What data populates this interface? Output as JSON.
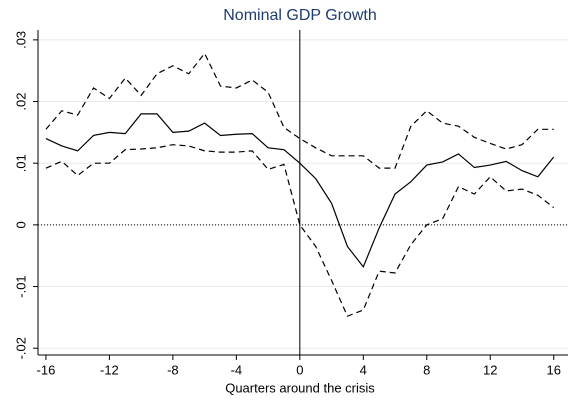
{
  "chart_data": {
    "type": "line",
    "title": "Nominal GDP Growth",
    "x_label": "Quarters around the crisis",
    "x": [
      -16,
      -15,
      -14,
      -13,
      -12,
      -11,
      -10,
      -9,
      -8,
      -7,
      -6,
      -5,
      -4,
      -3,
      -2,
      -1,
      0,
      1,
      2,
      3,
      4,
      5,
      6,
      7,
      8,
      9,
      10,
      11,
      12,
      13,
      14,
      15,
      16
    ],
    "series": [
      {
        "color": "#000000",
        "style": "solid",
        "values": [
          0.014,
          0.0128,
          0.012,
          0.0145,
          0.015,
          0.0148,
          0.018,
          0.018,
          0.015,
          0.0152,
          0.0165,
          0.0145,
          0.0147,
          0.0148,
          0.0125,
          0.0122,
          0.01,
          0.0075,
          0.0035,
          -0.0035,
          -0.0068,
          -0.0005,
          0.005,
          0.007,
          0.0097,
          0.0102,
          0.0115,
          0.0093,
          0.0097,
          0.0103,
          0.0088,
          0.0078,
          0.011
        ]
      },
      {
        "color": "#000000",
        "style": "dashed",
        "values": [
          0.0155,
          0.0185,
          0.0178,
          0.0222,
          0.0205,
          0.0238,
          0.021,
          0.0245,
          0.0258,
          0.0245,
          0.0278,
          0.0225,
          0.0222,
          0.0235,
          0.0215,
          0.0158,
          0.014,
          0.0125,
          0.0112,
          0.0112,
          0.0112,
          0.0092,
          0.0092,
          0.016,
          0.0185,
          0.0165,
          0.016,
          0.0142,
          0.0132,
          0.0123,
          0.013,
          0.0155,
          0.0155
        ]
      },
      {
        "color": "#000000",
        "style": "dashed",
        "values": [
          0.0092,
          0.0103,
          0.008,
          0.01,
          0.01,
          0.0122,
          0.0123,
          0.0125,
          0.013,
          0.0128,
          0.012,
          0.0118,
          0.0118,
          0.012,
          0.009,
          0.0098,
          0.0,
          -0.0035,
          -0.009,
          -0.0148,
          -0.0138,
          -0.0075,
          -0.0078,
          -0.0032,
          0.0,
          0.001,
          0.0062,
          0.005,
          0.0078,
          0.0055,
          0.0058,
          0.0048,
          0.0028
        ]
      }
    ],
    "xlim": [
      -16.5,
      16.9
    ],
    "xticks": [
      -16,
      -12,
      -8,
      -4,
      0,
      4,
      8,
      12,
      16
    ],
    "ylim": [
      -0.0211,
      0.0316
    ],
    "yticks": [
      {
        "value": 0.03,
        "label": ".03"
      },
      {
        "value": 0.02,
        "label": ".02"
      },
      {
        "value": 0.01,
        "label": ".01"
      },
      0,
      {
        "value": -0.01,
        "label": "-.01"
      },
      {
        "value": -0.02,
        "label": "-.02"
      }
    ],
    "grid": true,
    "hline": 0,
    "vline": 0,
    "title_color": "#1e3d6e"
  }
}
